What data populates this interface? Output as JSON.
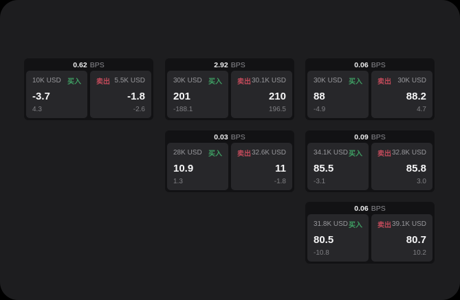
{
  "labels": {
    "bps_suffix": "BPS",
    "buy": "买入",
    "sell": "卖出"
  },
  "colors": {
    "outer-bg": "#000000",
    "window-bg": "#1d1d1f",
    "card-bg": "#121214",
    "panel-bg": "#27272a",
    "buy": "#3f9e63",
    "sell": "#c04a5a",
    "label": "#98989c",
    "dim": "#808084",
    "value": "#f5f5f6"
  },
  "cards": [
    {
      "bps": "0.62",
      "buy": {
        "amount": "10K USD",
        "value": "-3.7",
        "sub": "4.3"
      },
      "sell": {
        "amount": "5.5K USD",
        "value": "-1.8",
        "sub": "-2.6"
      }
    },
    {
      "bps": "2.92",
      "buy": {
        "amount": "30K USD",
        "value": "201",
        "sub": "-188.1"
      },
      "sell": {
        "amount": "30.1K USD",
        "value": "210",
        "sub": "196.5"
      }
    },
    {
      "bps": "0.06",
      "buy": {
        "amount": "30K USD",
        "value": "88",
        "sub": "-4.9"
      },
      "sell": {
        "amount": "30K USD",
        "value": "88.2",
        "sub": "4.7"
      }
    },
    {
      "bps": "0.03",
      "buy": {
        "amount": "28K USD",
        "value": "10.9",
        "sub": "1.3"
      },
      "sell": {
        "amount": "32.6K USD",
        "value": "11",
        "sub": "-1.8"
      }
    },
    {
      "bps": "0.09",
      "buy": {
        "amount": "34.1K USD",
        "value": "85.5",
        "sub": "-3.1"
      },
      "sell": {
        "amount": "32.8K USD",
        "value": "85.8",
        "sub": "3.0"
      }
    },
    {
      "bps": "0.06",
      "buy": {
        "amount": "31.8K USD",
        "value": "80.5",
        "sub": "-10.8"
      },
      "sell": {
        "amount": "39.1K USD",
        "value": "80.7",
        "sub": "10.2"
      }
    }
  ]
}
